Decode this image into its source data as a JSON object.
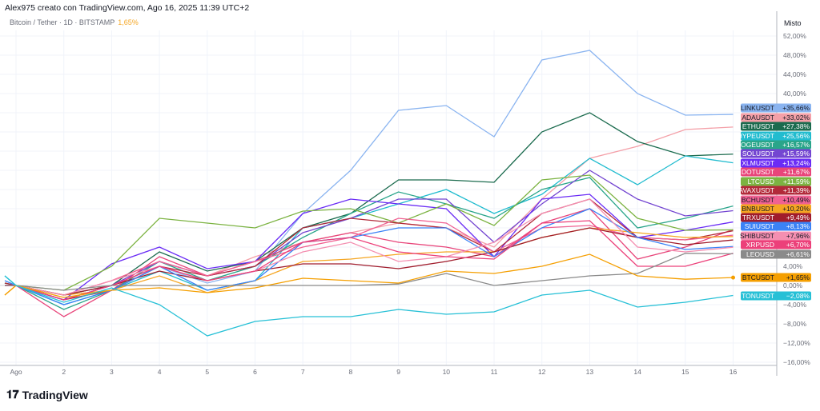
{
  "header": {
    "credit": "Alex975 creato con TradingView.com, Ago 16, 2025 11:39 UTC+2"
  },
  "symbol": {
    "name": "Bitcoin / Tether · 1D · BITSTAMP",
    "change": "1,65%"
  },
  "scale_mode": "Misto",
  "logo": {
    "text": "TradingView"
  },
  "chart_data": {
    "type": "line",
    "title": "Bitcoin / Tether · 1D · BITSTAMP",
    "x": [
      0,
      1,
      2,
      3,
      4,
      5,
      6,
      7,
      8,
      9,
      10,
      11,
      12,
      13,
      14,
      15,
      16
    ],
    "x_tick_labels": [
      "Ago",
      "2",
      "3",
      "4",
      "5",
      "6",
      "7",
      "8",
      "9",
      "10",
      "11",
      "12",
      "13",
      "14",
      "15",
      "16"
    ],
    "ylim": [
      -16,
      54
    ],
    "y_ticks": [
      {
        "v": 52,
        "t": "52,00%"
      },
      {
        "v": 48,
        "t": "48,00%"
      },
      {
        "v": 44,
        "t": "44,00%"
      },
      {
        "v": 40,
        "t": "40,00%"
      },
      {
        "v": 4,
        "t": "4,00%"
      },
      {
        "v": 0,
        "t": "0,00%"
      },
      {
        "v": -4,
        "t": "−4,00%"
      },
      {
        "v": -8,
        "t": "−8,00%"
      },
      {
        "v": -12,
        "t": "−12,00%"
      },
      {
        "v": -16,
        "t": "−16,00%"
      }
    ],
    "grid": true,
    "series": [
      {
        "name": "LINKUSDT",
        "label": "+35,66%",
        "color": "#8ab4f0",
        "values": [
          0.5,
          0,
          -3,
          0,
          4,
          0.5,
          3,
          15,
          24,
          36.5,
          37.5,
          31,
          47,
          49,
          40,
          35.5,
          35.66
        ]
      },
      {
        "name": "ADAUSDT",
        "label": "+33,02%",
        "color": "#f4a0a8",
        "values": [
          0,
          0,
          -2,
          1,
          5,
          2,
          6,
          9,
          11,
          13,
          12,
          8,
          18,
          26.5,
          29,
          32.5,
          33.02
        ]
      },
      {
        "name": "ETHUSDT",
        "label": "+27,38%",
        "color": "#1b6b4e",
        "values": [
          0.5,
          0,
          -2,
          0,
          7,
          3,
          5,
          12,
          15,
          22,
          22,
          21.5,
          32,
          36,
          30,
          27,
          27.38
        ]
      },
      {
        "name": "HYPEUSDT",
        "label": "+25,56%",
        "color": "#22bccf",
        "values": [
          2,
          0,
          -4,
          -1,
          3,
          -1,
          1,
          12,
          14,
          17,
          20,
          15,
          19,
          26.5,
          21,
          27,
          25.56
        ]
      },
      {
        "name": "DOGEUSDT",
        "label": "+16,57%",
        "color": "#2aa58a",
        "values": [
          0.5,
          0,
          -5,
          -1,
          5,
          1,
          4,
          10,
          15,
          19.5,
          17,
          14,
          20,
          22.5,
          12,
          14,
          16.57
        ]
      },
      {
        "name": "SOLUSDT",
        "label": "+15,59%",
        "color": "#7446d1",
        "values": [
          0,
          0,
          -3,
          0,
          5,
          2,
          4,
          11,
          14,
          18,
          18,
          9,
          17,
          24,
          18,
          14.5,
          15.59
        ]
      },
      {
        "name": "XLMUSDT",
        "label": "+13,24%",
        "color": "#6a2cf5",
        "values": [
          0,
          0,
          -3,
          4.5,
          8,
          3.5,
          5,
          15,
          18,
          17,
          16,
          6,
          18,
          19,
          10,
          11.5,
          13.24
        ]
      },
      {
        "name": "DOTUSDT",
        "label": "+11,67%",
        "color": "#e8457a",
        "values": [
          0,
          0,
          -6.5,
          -1,
          6,
          2,
          5,
          9,
          11,
          9,
          8,
          6,
          13,
          16,
          5.5,
          8,
          11.67
        ]
      },
      {
        "name": "LTCUSD",
        "label": "+11,59%",
        "color": "#7cb342",
        "values": [
          0,
          0,
          -1,
          4,
          14,
          13,
          12,
          15.5,
          16,
          13,
          17,
          12.5,
          22,
          23,
          14,
          11.5,
          11.59
        ]
      },
      {
        "name": "AVAXUSDT",
        "label": "+11,39%",
        "color": "#b22a3a",
        "values": [
          0.5,
          0,
          -3,
          -1,
          4,
          2,
          4,
          12,
          14,
          13,
          12,
          7,
          15,
          18,
          10,
          9.5,
          11.39
        ]
      },
      {
        "name": "BCHUSDT",
        "label": "+10,49%",
        "color": "#f06292",
        "values": [
          0,
          0,
          -2,
          1,
          5,
          2,
          5,
          8,
          10,
          14,
          13,
          7,
          12,
          12.5,
          10,
          9.5,
          10.49
        ]
      },
      {
        "name": "BNBUSDT",
        "label": "+10,20%",
        "color": "#f5a623",
        "values": [
          -2,
          0,
          -2,
          -1,
          2,
          -1.5,
          1,
          5,
          5.5,
          6.5,
          7,
          7,
          10,
          12,
          11,
          10,
          10.2
        ]
      },
      {
        "name": "TRXUSDT",
        "label": "+9,49%",
        "color": "#a01c2c",
        "values": [
          0,
          0,
          -2,
          0,
          3,
          1,
          3,
          4.5,
          4.5,
          3.5,
          5,
          7,
          10,
          12,
          10,
          8.5,
          9.49
        ]
      },
      {
        "name": "SUIUSDT",
        "label": "+8,13%",
        "color": "#3b82f6",
        "values": [
          1,
          0,
          -4,
          -1,
          4,
          -1,
          1,
          9,
          10,
          12,
          12,
          6,
          12,
          16,
          10,
          7.5,
          8.13
        ]
      },
      {
        "name": "SHIBUSDT",
        "label": "+7,96%",
        "color": "#f48fb1",
        "values": [
          0,
          0,
          -2,
          1,
          4,
          1,
          3,
          7,
          9,
          5,
          6,
          9,
          15,
          18,
          8,
          7,
          7.96
        ]
      },
      {
        "name": "XRPUSD",
        "label": "+6,70%",
        "color": "#ec407a",
        "values": [
          0,
          0,
          -3,
          0,
          4,
          1,
          3,
          9,
          10,
          7,
          6,
          5.5,
          13,
          13.5,
          4,
          4,
          6.7
        ]
      },
      {
        "name": "LEOUSD",
        "label": "+6,61%",
        "color": "#8a8a8a",
        "values": [
          0,
          0,
          -1,
          0,
          0,
          0,
          0,
          0,
          0,
          0.3,
          2.5,
          0,
          1,
          2,
          2.5,
          6.7,
          6.61
        ]
      },
      {
        "name": "BTCUSDT",
        "label": "+1,65%",
        "color": "#f59f00",
        "values": [
          -2,
          0,
          -2.5,
          -1,
          -0.5,
          -1.5,
          -0.5,
          1.5,
          1,
          0.5,
          3,
          2.5,
          4,
          6.5,
          2,
          1.3,
          1.65
        ]
      },
      {
        "name": "TONUSDT",
        "label": "−2,08%",
        "color": "#26c0d6",
        "values": [
          2,
          0,
          -3.5,
          -0.5,
          -4,
          -10.5,
          -7.5,
          -6.5,
          -6.5,
          -5,
          -6,
          -5.5,
          -2,
          -1,
          -4.5,
          -3.5,
          -2.08
        ]
      }
    ]
  }
}
